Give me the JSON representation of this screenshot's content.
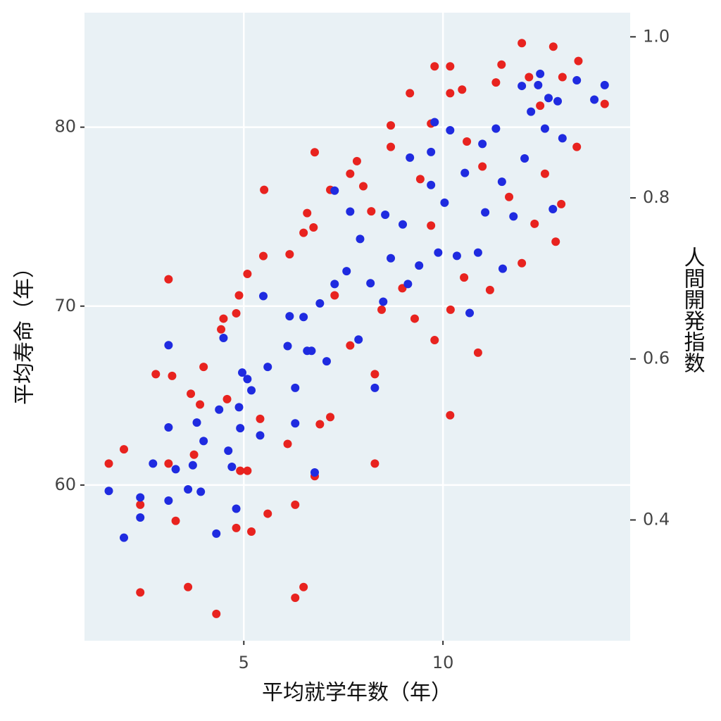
{
  "chart_data": {
    "type": "scatter",
    "x_label": "平均就学年数（年）",
    "y_label": "平均寿命（年）",
    "y2_label": "人間開発指数",
    "xlim": [
      1,
      14.7
    ],
    "xticks": [
      5,
      10
    ],
    "ylim": [
      51.3,
      86.4
    ],
    "yticks": [
      60,
      70,
      80
    ],
    "y2lim": [
      0.25,
      1.03
    ],
    "y2ticks": [
      0.4,
      0.6,
      0.8,
      {
        "value": 1,
        "label": "1.0"
      }
    ],
    "grid": true,
    "series": [
      {
        "color": "#e8231f",
        "axis": "y",
        "x": [
          1.61,
          1.99,
          2.4,
          2.4,
          2.79,
          3.11,
          3.11,
          3.2,
          3.29,
          3.6,
          3.67,
          3.75,
          3.9,
          3.99,
          4.31,
          4.43,
          4.49,
          4.58,
          4.81,
          4.88,
          4.81,
          4.91,
          5.09,
          5.09,
          5.19,
          5.41,
          5.49,
          5.51,
          5.6,
          6.1,
          6.15,
          6.29,
          6.29,
          6.5,
          6.5,
          6.59,
          6.75,
          6.78,
          6.78,
          6.91,
          7.17,
          7.17,
          7.28,
          7.67,
          7.67,
          7.84,
          8.0,
          8.2,
          8.29,
          8.29,
          8.46,
          8.69,
          8.69,
          8.98,
          9.17,
          9.29,
          9.43,
          9.7,
          9.7,
          9.79,
          9.79,
          10.18,
          10.18,
          10.18,
          10.19,
          10.48,
          10.53,
          10.6,
          10.88,
          10.99,
          11.18,
          11.33,
          11.47,
          11.66,
          11.98,
          11.98,
          12.16,
          12.3,
          12.44,
          12.56,
          12.77,
          12.83,
          13.0,
          12.97,
          13.36,
          13.4,
          14.06
        ],
        "values": [
          61.2,
          62.0,
          54.0,
          58.9,
          66.2,
          61.2,
          71.5,
          66.1,
          58.0,
          54.3,
          65.1,
          61.7,
          64.5,
          66.6,
          52.8,
          68.7,
          69.3,
          64.8,
          69.6,
          70.6,
          57.6,
          60.8,
          60.8,
          71.8,
          57.4,
          63.7,
          72.8,
          76.5,
          58.4,
          62.3,
          72.9,
          58.9,
          53.7,
          74.1,
          54.3,
          75.2,
          74.4,
          78.6,
          60.5,
          63.4,
          63.8,
          76.5,
          70.6,
          67.8,
          77.4,
          78.1,
          76.7,
          75.3,
          66.2,
          61.2,
          69.8,
          80.1,
          78.9,
          71.0,
          81.9,
          69.3,
          77.1,
          74.5,
          80.2,
          83.4,
          68.1,
          83.4,
          63.9,
          81.9,
          69.8,
          82.1,
          71.6,
          79.2,
          67.4,
          77.8,
          70.9,
          82.5,
          83.5,
          76.1,
          84.7,
          72.4,
          82.8,
          74.6,
          81.2,
          77.4,
          84.5,
          73.6,
          82.8,
          75.7,
          78.9,
          83.7,
          81.3
        ]
      },
      {
        "color": "#1f2be0",
        "axis": "y2",
        "x": [
          1.61,
          1.99,
          2.4,
          2.4,
          2.72,
          3.11,
          3.11,
          3.11,
          3.29,
          3.6,
          3.72,
          3.82,
          3.92,
          3.99,
          4.31,
          4.38,
          4.49,
          4.61,
          4.7,
          4.81,
          4.88,
          4.91,
          4.96,
          5.09,
          5.19,
          5.41,
          5.49,
          5.6,
          6.1,
          6.15,
          6.29,
          6.29,
          6.5,
          6.59,
          6.7,
          6.78,
          6.91,
          7.08,
          7.28,
          7.28,
          7.58,
          7.67,
          7.88,
          7.92,
          8.18,
          8.29,
          8.5,
          8.55,
          8.69,
          8.99,
          9.12,
          9.17,
          9.4,
          9.7,
          9.7,
          9.79,
          9.88,
          10.04,
          10.18,
          10.35,
          10.55,
          10.67,
          10.88,
          10.99,
          11.06,
          11.33,
          11.48,
          11.5,
          11.77,
          11.98,
          12.05,
          12.21,
          12.39,
          12.44,
          12.56,
          12.65,
          12.76,
          12.88,
          13.0,
          13.36,
          13.8,
          14.06
        ],
        "values": [
          0.436,
          0.378,
          0.428,
          0.403,
          0.47,
          0.515,
          0.424,
          0.617,
          0.463,
          0.438,
          0.468,
          0.521,
          0.435,
          0.498,
          0.383,
          0.537,
          0.626,
          0.486,
          0.466,
          0.414,
          0.54,
          0.514,
          0.583,
          0.575,
          0.561,
          0.505,
          0.678,
          0.59,
          0.616,
          0.653,
          0.52,
          0.564,
          0.652,
          0.61,
          0.61,
          0.459,
          0.669,
          0.597,
          0.693,
          0.809,
          0.709,
          0.783,
          0.624,
          0.749,
          0.694,
          0.564,
          0.671,
          0.779,
          0.725,
          0.767,
          0.693,
          0.85,
          0.716,
          0.816,
          0.857,
          0.894,
          0.732,
          0.794,
          0.884,
          0.728,
          0.831,
          0.657,
          0.732,
          0.867,
          0.782,
          0.886,
          0.82,
          0.712,
          0.777,
          0.939,
          0.849,
          0.907,
          0.94,
          0.954,
          0.886,
          0.924,
          0.786,
          0.92,
          0.874,
          0.946,
          0.922,
          0.94
        ]
      }
    ]
  }
}
